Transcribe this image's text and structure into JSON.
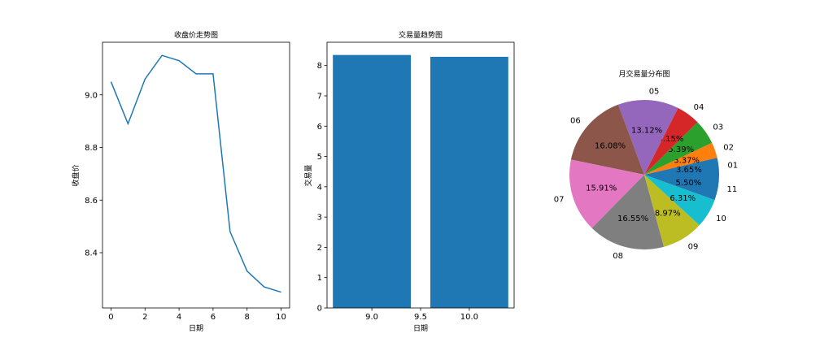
{
  "chart_data": [
    {
      "type": "line",
      "title": "收盘价走势图",
      "xlabel": "日期",
      "ylabel": "收盘价",
      "x": [
        0,
        1,
        2,
        3,
        4,
        5,
        6,
        7,
        8,
        9,
        10
      ],
      "series": [
        {
          "values": [
            9.05,
            8.89,
            9.06,
            9.15,
            9.13,
            9.08,
            9.08,
            8.48,
            8.33,
            8.27,
            8.25
          ],
          "color": "#1f77b4"
        }
      ],
      "xlim": [
        -0.5,
        10.5
      ],
      "ylim": [
        8.19,
        9.2
      ],
      "xticks": [
        "0",
        "2",
        "4",
        "6",
        "8",
        "10"
      ],
      "yticks": [
        "8.4",
        "8.6",
        "8.8",
        "9.0"
      ],
      "grid": false
    },
    {
      "type": "bar",
      "title": "交易量趋势图",
      "xlabel": "日期",
      "ylabel": "交易量",
      "x": [
        9.0,
        10.0
      ],
      "values": [
        8.35,
        8.29
      ],
      "color": "#1f77b4",
      "xlim": [
        8.54,
        10.46
      ],
      "ylim": [
        0,
        8.77
      ],
      "xticks": [
        "9.0",
        "9.5",
        "10.0"
      ],
      "yticks": [
        "0",
        "1",
        "2",
        "3",
        "4",
        "5",
        "6",
        "7",
        "8"
      ],
      "grid": false
    },
    {
      "type": "pie",
      "title": "月交易量分布图",
      "categories": [
        "01",
        "02",
        "03",
        "04",
        "05",
        "06",
        "07",
        "08",
        "09",
        "10",
        "11"
      ],
      "values": [
        3.65,
        3.37,
        5.39,
        5.15,
        13.12,
        16.08,
        15.91,
        16.55,
        8.97,
        6.31,
        5.5
      ],
      "labels": [
        "3.65%",
        "3.37%",
        "5.39%",
        "5.15%",
        "13.12%",
        "16.08%",
        "15.91%",
        "16.55%",
        "8.97%",
        "6.31%",
        "5.50%"
      ],
      "colors": [
        "#1f77b4",
        "#ff7f0e",
        "#2ca02c",
        "#d62728",
        "#9467bd",
        "#8c564b",
        "#e377c2",
        "#7f7f7f",
        "#bcbd22",
        "#17becf",
        "#1f77b4"
      ]
    }
  ]
}
